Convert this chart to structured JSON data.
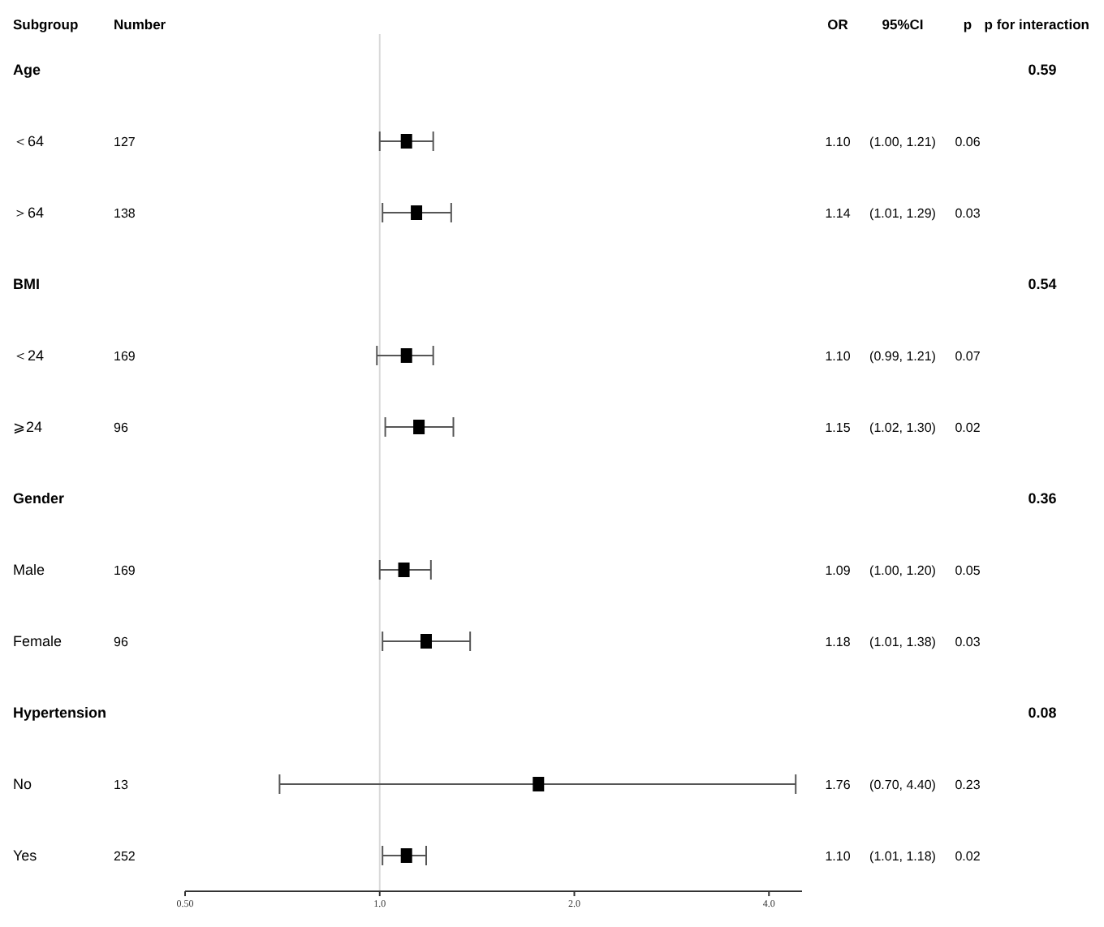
{
  "chart_data": {
    "type": "scatter",
    "orientation": "horizontal",
    "marker": "square",
    "color": "#000000",
    "categories": [
      "Age",
      "＜64",
      "＞64",
      "BMI",
      "＜24",
      "⩾24",
      "Gender",
      "Male",
      "Female",
      "Hypertension",
      "No",
      "Yes"
    ],
    "values": [
      null,
      1.1,
      1.14,
      null,
      1.1,
      1.15,
      null,
      1.09,
      1.18,
      null,
      1.76,
      1.1
    ],
    "errors": [
      null,
      [
        1.0,
        1.21
      ],
      [
        1.01,
        1.29
      ],
      null,
      [
        0.99,
        1.21
      ],
      [
        1.02,
        1.3
      ],
      null,
      [
        1.0,
        1.2
      ],
      [
        1.01,
        1.38
      ],
      null,
      [
        0.7,
        4.4
      ],
      [
        1.01,
        1.18
      ]
    ],
    "value_labels": [
      null,
      "1.10",
      "1.14",
      null,
      "1.10",
      "1.15",
      null,
      "1.09",
      "1.18",
      null,
      "1.76",
      "1.10"
    ],
    "log": "x",
    "xlim": [
      0.5,
      4.5
    ],
    "xticks": [
      {
        "value": 0.5,
        "label": "0.50"
      },
      {
        "value": 1,
        "label": "1.0"
      },
      {
        "value": 2,
        "label": "2.0"
      },
      {
        "value": 4,
        "label": "4.0"
      }
    ],
    "ref_lines": [
      {
        "axis": "x",
        "value": 1,
        "color": "#d9d9d9"
      }
    ],
    "annotations": [
      "Subgroup",
      "Number",
      "OR",
      "95%CI",
      "p",
      "p for interaction",
      "0.59",
      "127",
      "(1.00, 1.21)",
      "0.06",
      "138",
      "(1.01, 1.29)",
      "0.03",
      "0.54",
      "169",
      "(0.99, 1.21)",
      "0.07",
      "96",
      "(1.02, 1.30)",
      "0.02",
      "0.36",
      "169",
      "(1.00, 1.20)",
      "0.05",
      "96",
      "(1.01, 1.38)",
      "0.03",
      "0.08",
      "13",
      "(0.70, 4.40)",
      "0.23",
      "252",
      "(1.01, 1.18)",
      "0.02"
    ]
  }
}
